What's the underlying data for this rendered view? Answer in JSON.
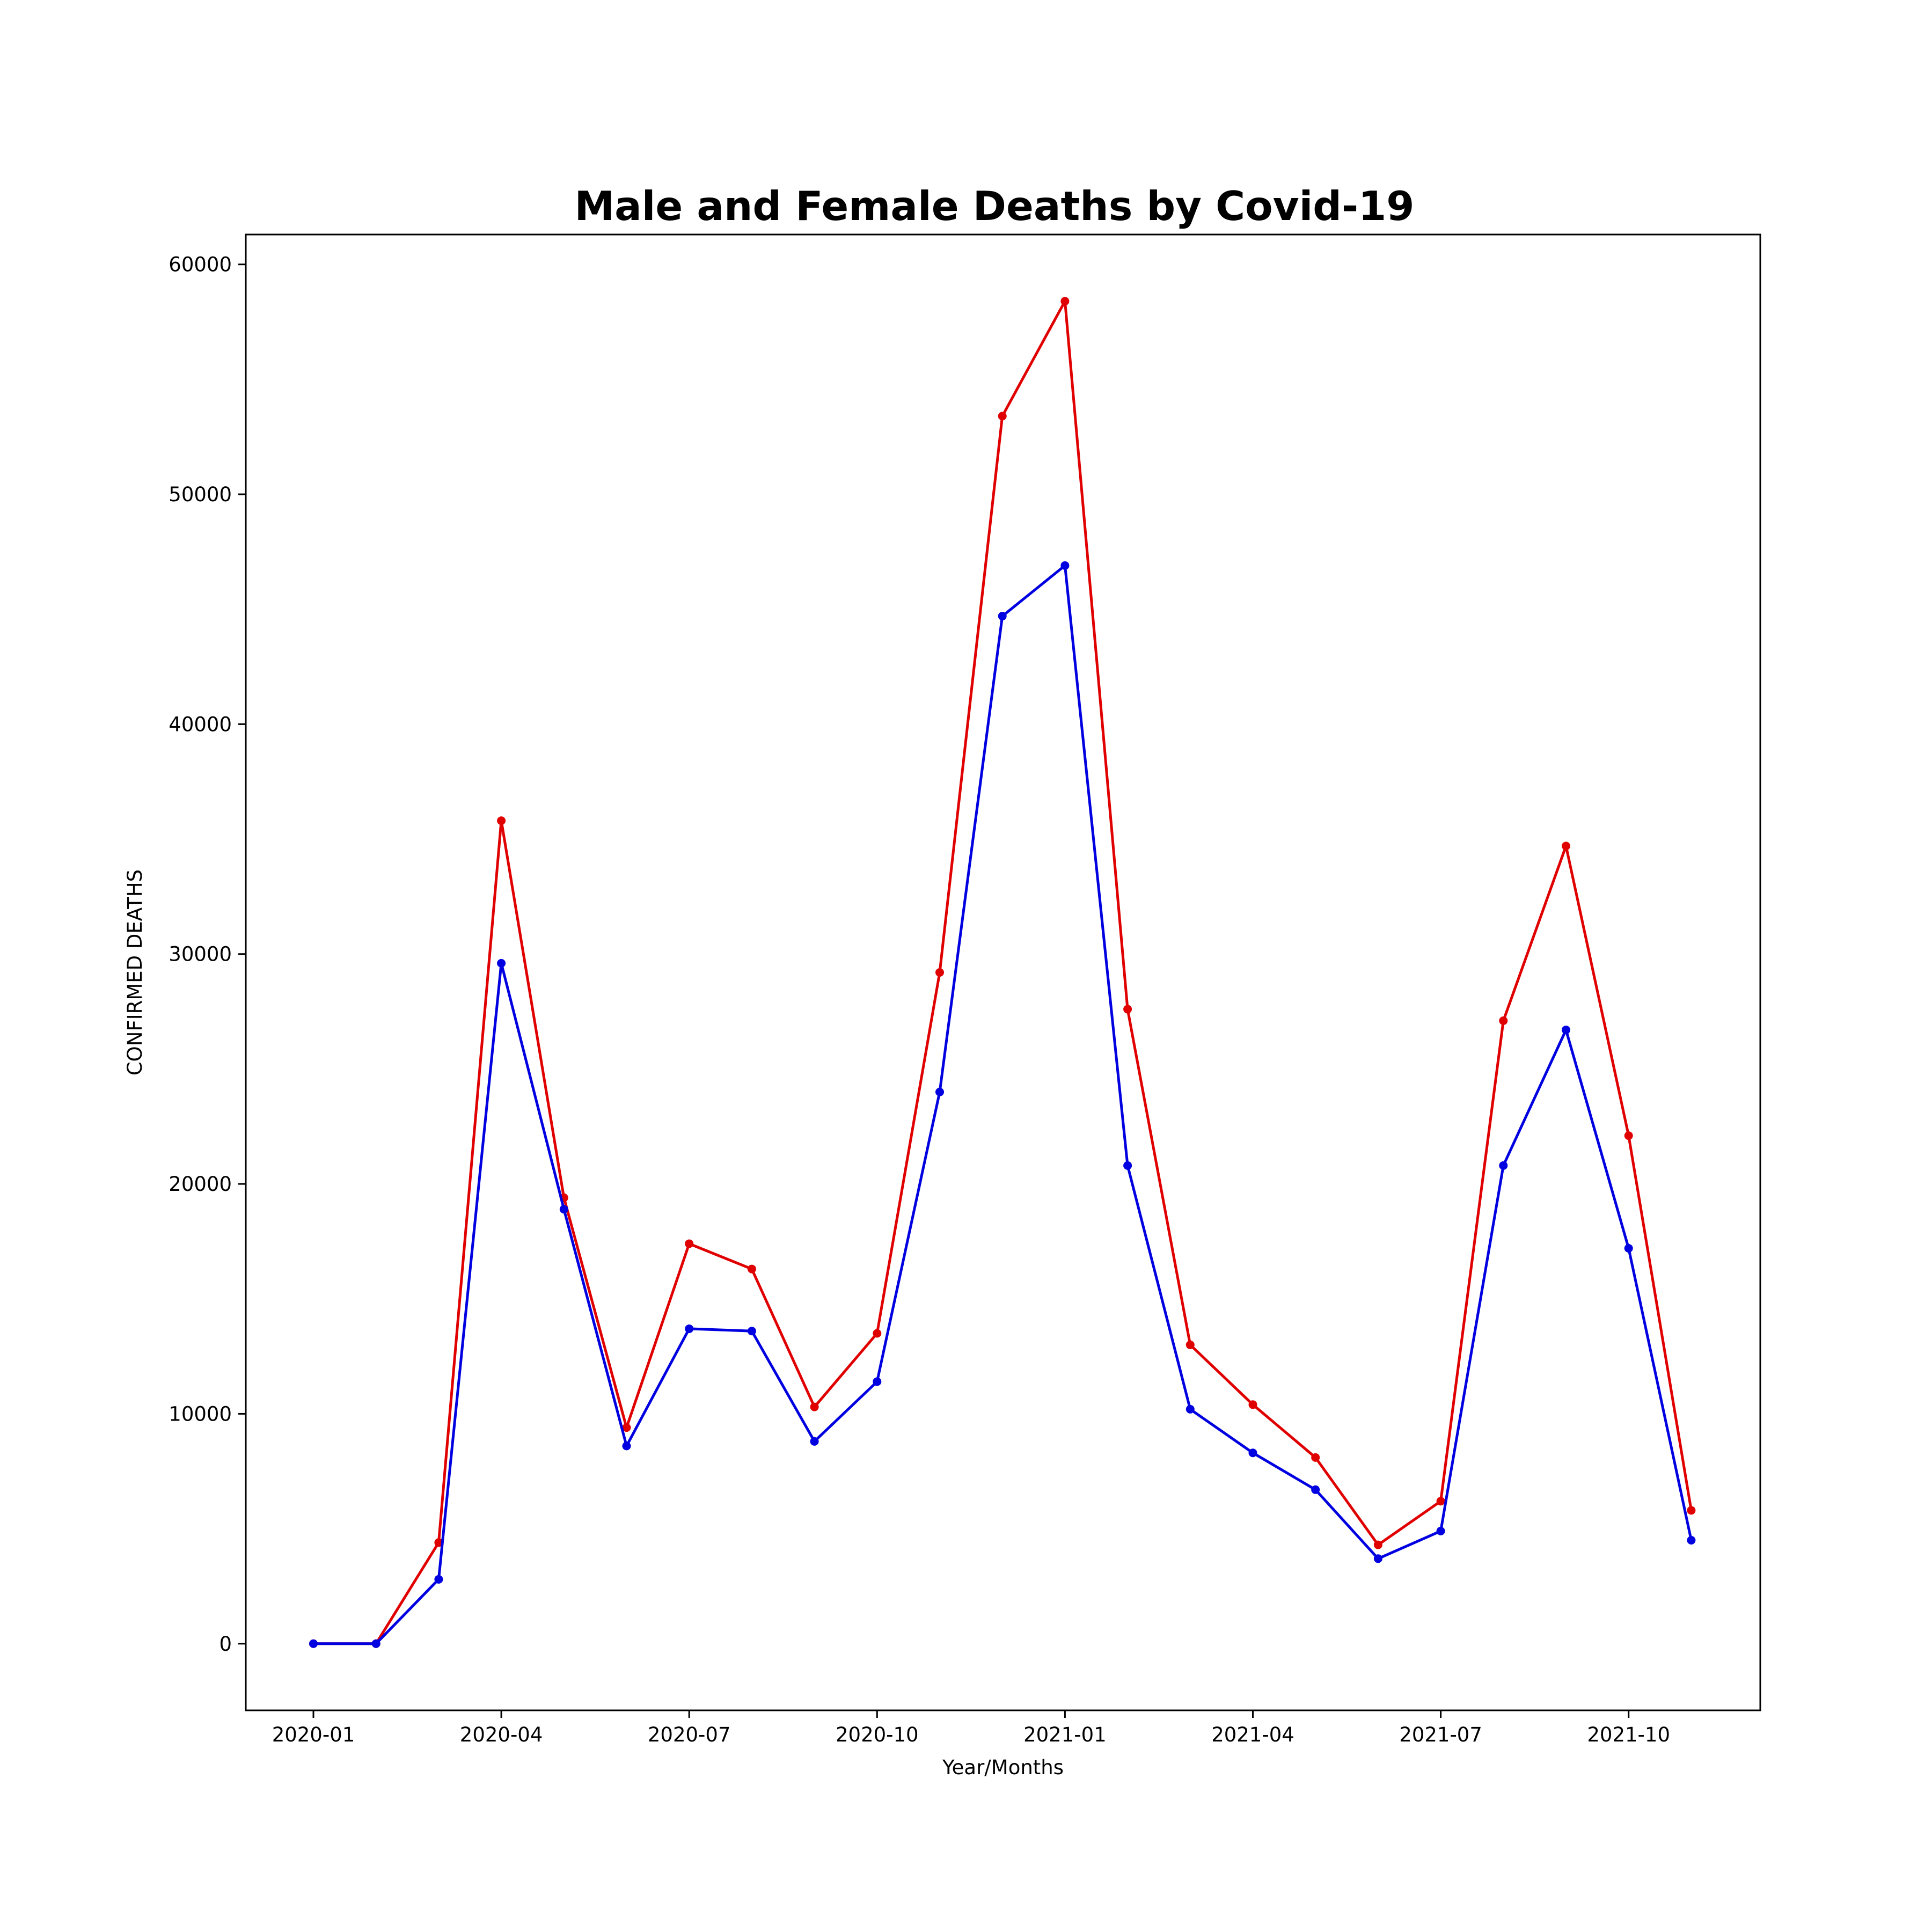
{
  "chart_data": {
    "type": "line",
    "title": "Male and Female Deaths by Covid-19",
    "xlabel": "Year/Months",
    "ylabel": "CONFIRMED DEATHS",
    "x": [
      "2020-01",
      "2020-02",
      "2020-03",
      "2020-04",
      "2020-05",
      "2020-06",
      "2020-07",
      "2020-08",
      "2020-09",
      "2020-10",
      "2020-11",
      "2020-12",
      "2021-01",
      "2021-02",
      "2021-03",
      "2021-04",
      "2021-05",
      "2021-06",
      "2021-07",
      "2021-08",
      "2021-09",
      "2021-10",
      "2021-11"
    ],
    "x_ticks": [
      "2020-01",
      "2020-04",
      "2020-07",
      "2020-10",
      "2021-01",
      "2021-04",
      "2021-07",
      "2021-10"
    ],
    "y_ticks": [
      0,
      10000,
      20000,
      30000,
      40000,
      50000,
      60000
    ],
    "ylim": [
      -2900,
      61300
    ],
    "grid": false,
    "series": [
      {
        "color": "#e00000",
        "values": [
          0,
          0,
          4400,
          35800,
          19400,
          9400,
          17400,
          16300,
          10300,
          13500,
          29200,
          53400,
          58400,
          27600,
          13000,
          10400,
          8100,
          4300,
          6200,
          27100,
          34700,
          22100,
          5800
        ]
      },
      {
        "color": "#0000e0",
        "values": [
          0,
          0,
          2800,
          29600,
          18900,
          8600,
          13700,
          13600,
          8800,
          11400,
          24000,
          44700,
          46900,
          20800,
          10200,
          8300,
          6700,
          3700,
          4900,
          20800,
          26700,
          17200,
          4500
        ]
      }
    ]
  }
}
